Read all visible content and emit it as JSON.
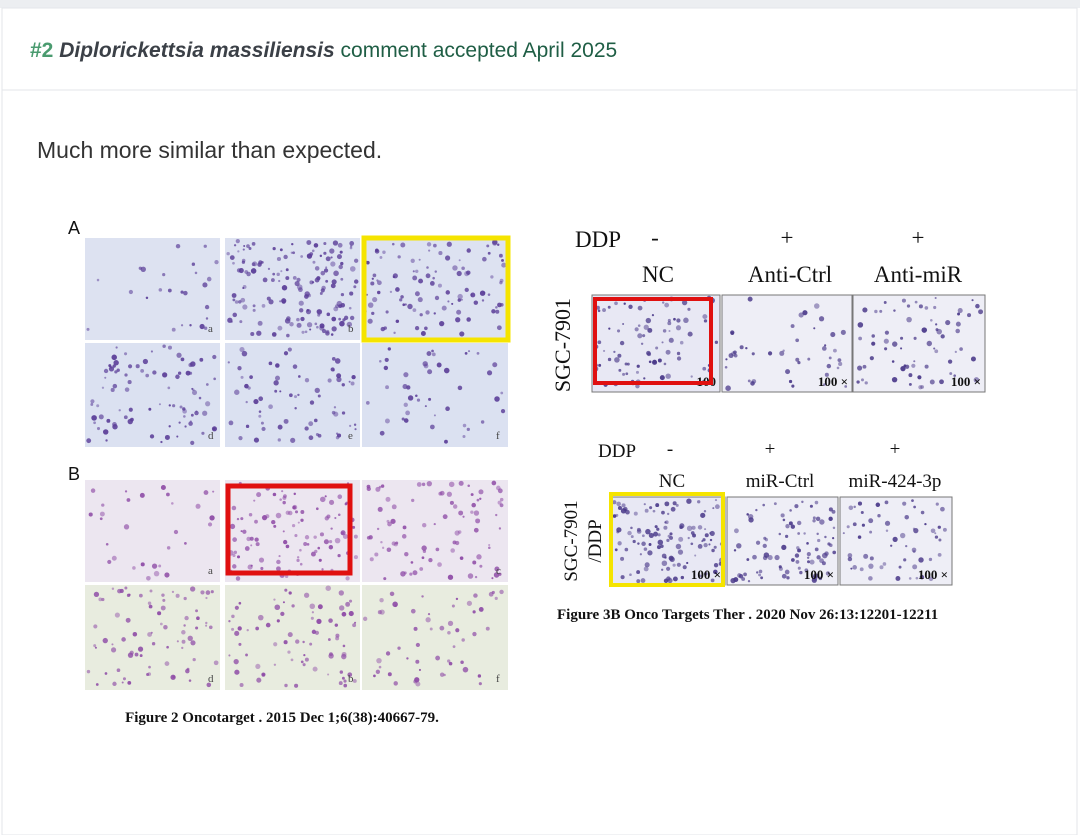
{
  "header": {
    "number": "#2",
    "species": "Diplorickettsia massiliensis",
    "status": "comment accepted April 2025"
  },
  "comment": {
    "text": "Much more similar than expected."
  },
  "figure_left": {
    "panel_groups": [
      {
        "label": "A",
        "panels": [
          "a",
          "b",
          null,
          "d",
          "e",
          "f"
        ]
      },
      {
        "label": "B",
        "panels": [
          "a",
          null,
          "c",
          "d",
          "b",
          "f"
        ]
      }
    ],
    "caption": "Figure 2 Oncotarget . 2015 Dec 1;6(38):40667-79."
  },
  "figure_right": {
    "top": {
      "row_label": "DDP",
      "treatments": [
        "-",
        "+",
        "+"
      ],
      "groups": [
        "NC",
        "Anti-Ctrl",
        "Anti-miR"
      ],
      "cell_line": "SGC-7901",
      "magnification": [
        "100",
        "100 ×",
        "100 ×"
      ]
    },
    "bottom": {
      "row_label": "DDP",
      "treatments": [
        "-",
        "+",
        "+"
      ],
      "groups": [
        "NC",
        "miR-Ctrl",
        "miR-424-3p"
      ],
      "cell_line": [
        "SGC-7901",
        "/DDP"
      ],
      "magnification": [
        "100 ×",
        "100 ×",
        "100 ×"
      ]
    },
    "caption": "Figure 3B Onco Targets Ther . 2020 Nov 26:13:12201-12211"
  }
}
